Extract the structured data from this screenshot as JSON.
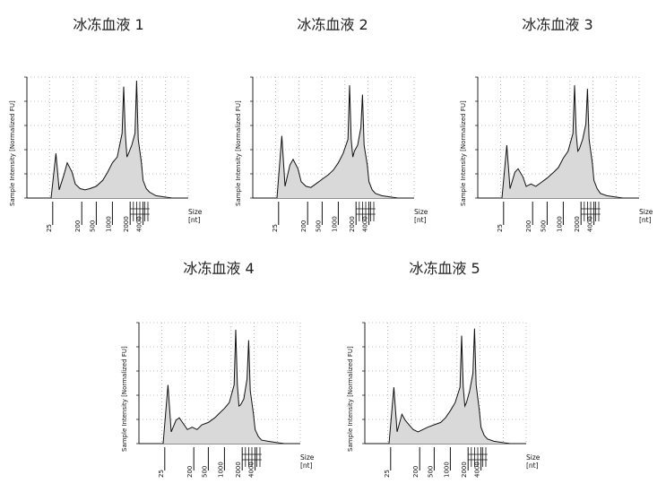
{
  "chart_data": [
    {
      "type": "line",
      "title": "冰冻血液 1",
      "ylabel": "Sample Intensity [Normalized FU]",
      "x_axis_title": [
        "Size",
        "[nt]"
      ],
      "tick_labels": [
        "25",
        "200",
        "500",
        "1000",
        "2000",
        "4000"
      ],
      "tick_values": [
        25,
        200,
        500,
        1000,
        2000,
        4000
      ],
      "grid": true,
      "series": [
        {
          "x": [
            0,
            0.15,
            0.18,
            0.2,
            0.23,
            0.25,
            0.28,
            0.3,
            0.33,
            0.36,
            0.39,
            0.43,
            0.47,
            0.5,
            0.53,
            0.56,
            0.59,
            0.6,
            0.61,
            0.62,
            0.63,
            0.65,
            0.67,
            0.68,
            0.69,
            0.71,
            0.72,
            0.74,
            0.76,
            0.8,
            0.85,
            0.9,
            1
          ],
          "y": [
            0,
            0,
            0.38,
            0.07,
            0.2,
            0.3,
            0.22,
            0.12,
            0.08,
            0.07,
            0.08,
            0.1,
            0.15,
            0.22,
            0.3,
            0.35,
            0.55,
            0.95,
            0.55,
            0.35,
            0.38,
            0.45,
            0.55,
            1.0,
            0.5,
            0.3,
            0.15,
            0.08,
            0.05,
            0.02,
            0.01,
            0,
            0
          ]
        }
      ]
    },
    {
      "type": "line",
      "title": "冰冻血液 2",
      "ylabel": "Sample Intensity [Normalized FU]",
      "x_axis_title": [
        "Size",
        "[nt]"
      ],
      "tick_labels": [
        "25",
        "200",
        "500",
        "1000",
        "2000",
        "4000"
      ],
      "tick_values": [
        25,
        200,
        500,
        1000,
        2000,
        4000
      ],
      "grid": true,
      "series": [
        {
          "x": [
            0,
            0.15,
            0.18,
            0.2,
            0.23,
            0.25,
            0.28,
            0.3,
            0.33,
            0.36,
            0.39,
            0.43,
            0.47,
            0.5,
            0.53,
            0.56,
            0.59,
            0.6,
            0.61,
            0.62,
            0.63,
            0.65,
            0.67,
            0.68,
            0.69,
            0.71,
            0.72,
            0.74,
            0.76,
            0.8,
            0.85,
            0.9,
            1
          ],
          "y": [
            0,
            0,
            0.53,
            0.1,
            0.28,
            0.33,
            0.25,
            0.14,
            0.1,
            0.09,
            0.12,
            0.16,
            0.2,
            0.24,
            0.3,
            0.38,
            0.5,
            0.96,
            0.5,
            0.35,
            0.4,
            0.45,
            0.6,
            0.88,
            0.45,
            0.28,
            0.14,
            0.07,
            0.04,
            0.02,
            0.01,
            0,
            0
          ]
        }
      ]
    },
    {
      "type": "line",
      "title": "冰冻血液 3",
      "ylabel": "Sample Intensity [Normalized FU]",
      "x_axis_title": [
        "Size",
        "[nt]"
      ],
      "tick_labels": [
        "25",
        "200",
        "500",
        "1000",
        "2000",
        "4000"
      ],
      "tick_values": [
        25,
        200,
        500,
        1000,
        2000,
        4000
      ],
      "grid": true,
      "series": [
        {
          "x": [
            0,
            0.15,
            0.18,
            0.2,
            0.23,
            0.25,
            0.28,
            0.3,
            0.33,
            0.36,
            0.39,
            0.43,
            0.47,
            0.5,
            0.53,
            0.56,
            0.59,
            0.6,
            0.61,
            0.62,
            0.63,
            0.65,
            0.67,
            0.68,
            0.69,
            0.71,
            0.72,
            0.74,
            0.76,
            0.8,
            0.85,
            0.9,
            1
          ],
          "y": [
            0,
            0,
            0.45,
            0.08,
            0.22,
            0.25,
            0.18,
            0.1,
            0.12,
            0.1,
            0.13,
            0.17,
            0.22,
            0.26,
            0.34,
            0.4,
            0.55,
            0.96,
            0.55,
            0.4,
            0.42,
            0.5,
            0.63,
            0.93,
            0.5,
            0.3,
            0.15,
            0.08,
            0.04,
            0.02,
            0.01,
            0,
            0
          ]
        }
      ]
    },
    {
      "type": "line",
      "title": "冰冻血液 4",
      "ylabel": "Sample Intensity [Normalized FU]",
      "x_axis_title": [
        "Size",
        "[nt]"
      ],
      "tick_labels": [
        "25",
        "200",
        "500",
        "1000",
        "2000",
        "4000"
      ],
      "tick_values": [
        25,
        200,
        500,
        1000,
        2000,
        4000
      ],
      "grid": true,
      "series": [
        {
          "x": [
            0,
            0.15,
            0.18,
            0.2,
            0.23,
            0.25,
            0.28,
            0.3,
            0.33,
            0.36,
            0.39,
            0.43,
            0.47,
            0.5,
            0.53,
            0.56,
            0.59,
            0.6,
            0.61,
            0.62,
            0.63,
            0.65,
            0.67,
            0.68,
            0.69,
            0.71,
            0.72,
            0.74,
            0.76,
            0.8,
            0.85,
            0.9,
            1
          ],
          "y": [
            0,
            0,
            0.5,
            0.1,
            0.2,
            0.22,
            0.16,
            0.12,
            0.14,
            0.12,
            0.16,
            0.18,
            0.22,
            0.26,
            0.3,
            0.35,
            0.5,
            0.97,
            0.5,
            0.32,
            0.33,
            0.38,
            0.55,
            0.88,
            0.45,
            0.25,
            0.12,
            0.06,
            0.03,
            0.02,
            0.01,
            0,
            0
          ]
        }
      ]
    },
    {
      "type": "line",
      "title": "冰冻血液 5",
      "ylabel": "Sample Intensity [Normalized FU]",
      "x_axis_title": [
        "Size",
        "[nt]"
      ],
      "tick_labels": [
        "25",
        "200",
        "500",
        "1000",
        "2000",
        "4000"
      ],
      "tick_values": [
        25,
        200,
        500,
        1000,
        2000,
        4000
      ],
      "grid": true,
      "series": [
        {
          "x": [
            0,
            0.15,
            0.18,
            0.2,
            0.23,
            0.25,
            0.28,
            0.3,
            0.33,
            0.36,
            0.39,
            0.43,
            0.47,
            0.5,
            0.53,
            0.56,
            0.59,
            0.6,
            0.61,
            0.62,
            0.63,
            0.65,
            0.67,
            0.68,
            0.69,
            0.71,
            0.72,
            0.74,
            0.76,
            0.8,
            0.85,
            0.9,
            1
          ],
          "y": [
            0,
            0,
            0.48,
            0.1,
            0.25,
            0.2,
            0.15,
            0.12,
            0.1,
            0.12,
            0.14,
            0.16,
            0.18,
            0.22,
            0.28,
            0.35,
            0.48,
            0.92,
            0.48,
            0.32,
            0.35,
            0.45,
            0.6,
            0.98,
            0.5,
            0.28,
            0.14,
            0.07,
            0.04,
            0.02,
            0.01,
            0,
            0
          ]
        }
      ]
    }
  ]
}
